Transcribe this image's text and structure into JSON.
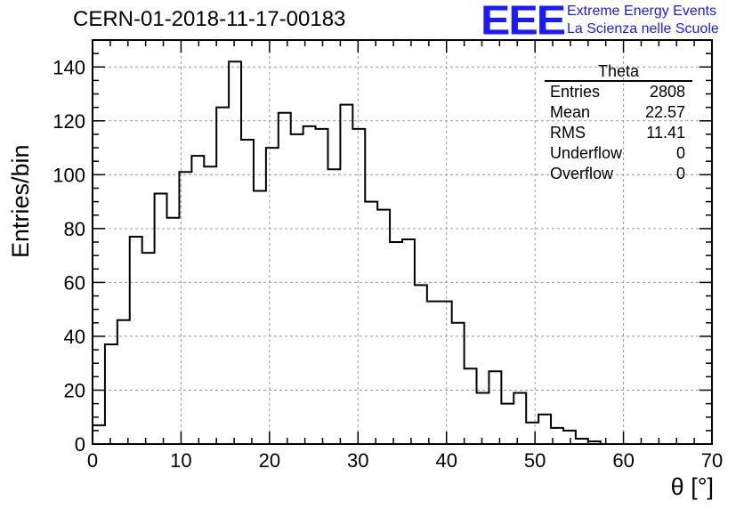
{
  "header": {
    "title": "CERN-01-2018-11-17-00183",
    "logo": "EEE",
    "logo_line1": "Extreme Energy Events",
    "logo_line2": "La Scienza nelle Scuole"
  },
  "stats": {
    "name": "Theta",
    "rows": [
      {
        "label": "Entries",
        "value": "2808"
      },
      {
        "label": "Mean",
        "value": "22.57"
      },
      {
        "label": "RMS",
        "value": "11.41"
      },
      {
        "label": "Underflow",
        "value": "0"
      },
      {
        "label": "Overflow",
        "value": "0"
      }
    ]
  },
  "chart_data": {
    "type": "histogram",
    "xlabel": "θ [°]",
    "ylabel": "Entries/bin",
    "xlim": [
      0,
      70
    ],
    "ylim": [
      0,
      150
    ],
    "bin_width": 1.4,
    "x_ticks": [
      0,
      10,
      20,
      30,
      40,
      50,
      60,
      70
    ],
    "y_ticks": [
      0,
      20,
      40,
      60,
      80,
      100,
      120,
      140
    ],
    "grid": true,
    "values": [
      7,
      37,
      46,
      77,
      71,
      93,
      84,
      101,
      107,
      103,
      125,
      142,
      113,
      94,
      110,
      123,
      115,
      118,
      117,
      102,
      126,
      117,
      90,
      87,
      75,
      76,
      59,
      53,
      53,
      45,
      28,
      19,
      27,
      15,
      19,
      8,
      11,
      6,
      5,
      2,
      1,
      0,
      0,
      0,
      0,
      0,
      0,
      0,
      0,
      0
    ]
  }
}
